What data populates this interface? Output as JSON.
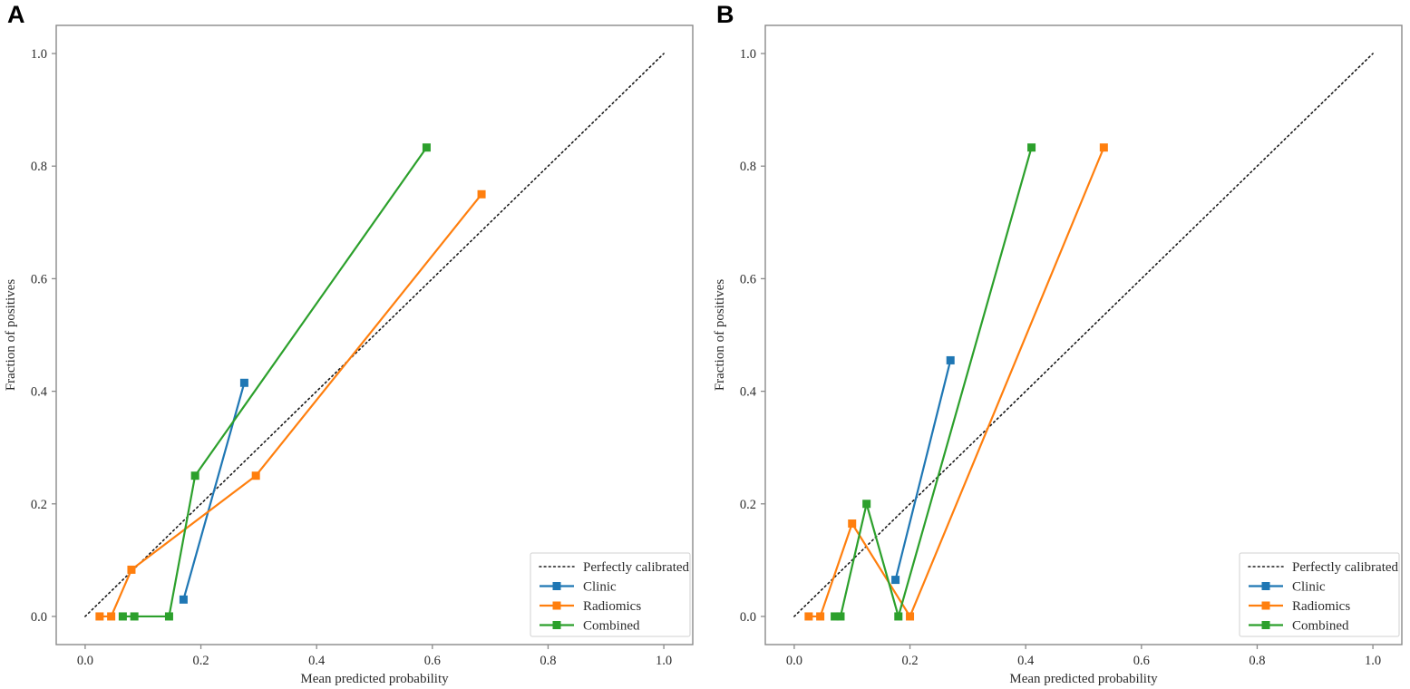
{
  "figure": {
    "panel_labels": [
      "A",
      "B"
    ],
    "background": "#ffffff",
    "text_color": "#2b2b2b",
    "spine_color": "#8a8a8a"
  },
  "chart_data": [
    {
      "id": "A",
      "type": "line",
      "title": "",
      "xlabel": "Mean predicted probability",
      "ylabel": "Fraction of positives",
      "xlim": [
        -0.05,
        1.05
      ],
      "ylim": [
        -0.05,
        1.05
      ],
      "x_ticks": [
        0.0,
        0.2,
        0.4,
        0.6,
        0.8,
        1.0
      ],
      "y_ticks": [
        0.0,
        0.2,
        0.4,
        0.6,
        0.8,
        1.0
      ],
      "grid": false,
      "legend_position": "lower right",
      "reference": {
        "label": "Perfectly calibrated",
        "style": "dotted",
        "color": "#1a1a1a",
        "points": [
          [
            0.0,
            0.0
          ],
          [
            1.0,
            1.0
          ]
        ]
      },
      "series": [
        {
          "name": "Clinic",
          "color": "#1f77b4",
          "marker": "square",
          "points": [
            [
              0.17,
              0.03
            ],
            [
              0.275,
              0.415
            ]
          ]
        },
        {
          "name": "Radiomics",
          "color": "#ff7f0e",
          "marker": "square",
          "points": [
            [
              0.025,
              0.0
            ],
            [
              0.045,
              0.0
            ],
            [
              0.08,
              0.083
            ],
            [
              0.295,
              0.25
            ],
            [
              0.685,
              0.75
            ]
          ]
        },
        {
          "name": "Combined",
          "color": "#2ca02c",
          "marker": "square",
          "points": [
            [
              0.065,
              0.0
            ],
            [
              0.085,
              0.0
            ],
            [
              0.145,
              0.0
            ],
            [
              0.19,
              0.25
            ],
            [
              0.59,
              0.833
            ]
          ]
        }
      ]
    },
    {
      "id": "B",
      "type": "line",
      "title": "",
      "xlabel": "Mean predicted probability",
      "ylabel": "Fraction of positives",
      "xlim": [
        -0.05,
        1.05
      ],
      "ylim": [
        -0.05,
        1.05
      ],
      "x_ticks": [
        0.0,
        0.2,
        0.4,
        0.6,
        0.8,
        1.0
      ],
      "y_ticks": [
        0.0,
        0.2,
        0.4,
        0.6,
        0.8,
        1.0
      ],
      "grid": false,
      "legend_position": "lower right",
      "reference": {
        "label": "Perfectly calibrated",
        "style": "dotted",
        "color": "#1a1a1a",
        "points": [
          [
            0.0,
            0.0
          ],
          [
            1.0,
            1.0
          ]
        ]
      },
      "series": [
        {
          "name": "Clinic",
          "color": "#1f77b4",
          "marker": "square",
          "points": [
            [
              0.175,
              0.065
            ],
            [
              0.27,
              0.455
            ]
          ]
        },
        {
          "name": "Radiomics",
          "color": "#ff7f0e",
          "marker": "square",
          "points": [
            [
              0.025,
              0.0
            ],
            [
              0.045,
              0.0
            ],
            [
              0.1,
              0.165
            ],
            [
              0.2,
              0.0
            ],
            [
              0.535,
              0.833
            ]
          ]
        },
        {
          "name": "Combined",
          "color": "#2ca02c",
          "marker": "square",
          "points": [
            [
              0.07,
              0.0
            ],
            [
              0.08,
              0.0
            ],
            [
              0.125,
              0.2
            ],
            [
              0.18,
              0.0
            ],
            [
              0.41,
              0.833
            ]
          ]
        }
      ]
    }
  ]
}
